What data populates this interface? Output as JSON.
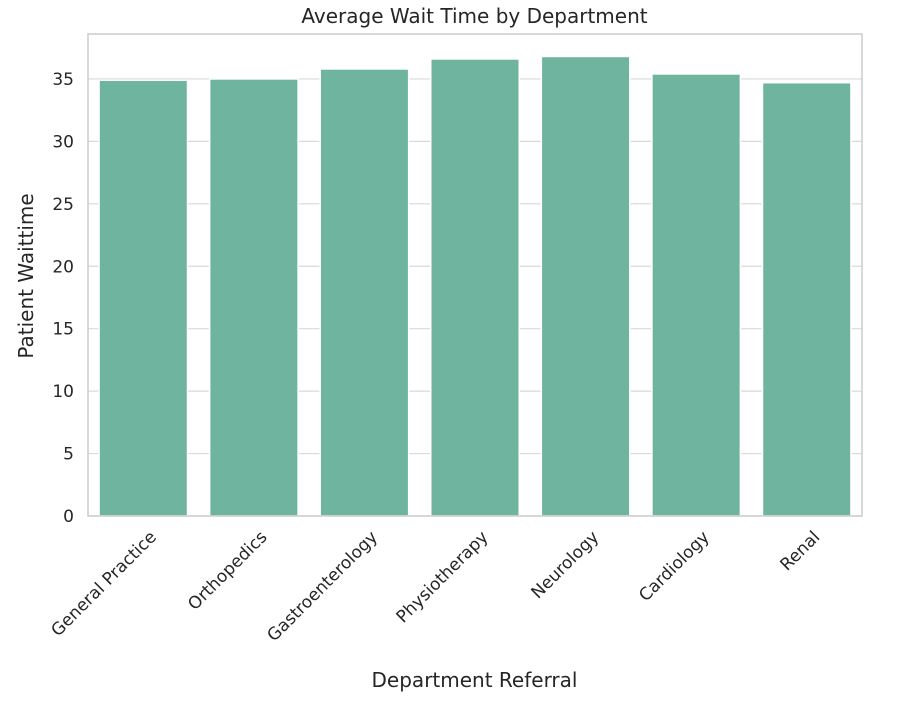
{
  "chart_data": {
    "type": "bar",
    "title": "Average Wait Time by Department",
    "xlabel": "Department Referral",
    "ylabel": "Patient Waittime",
    "categories": [
      "General Practice",
      "Orthopedics",
      "Gastroenterology",
      "Physiotherapy",
      "Neurology",
      "Cardiology",
      "Renal"
    ],
    "values": [
      34.9,
      35.0,
      35.8,
      36.6,
      36.8,
      35.4,
      34.7
    ],
    "ylim": [
      0,
      38.6
    ],
    "yticks": [
      0,
      5,
      10,
      15,
      20,
      25,
      30,
      35
    ],
    "grid": "y",
    "bar_color": "#6fb49e",
    "gridline_color": "#d9d9d9",
    "frame_color": "#cccccc"
  }
}
